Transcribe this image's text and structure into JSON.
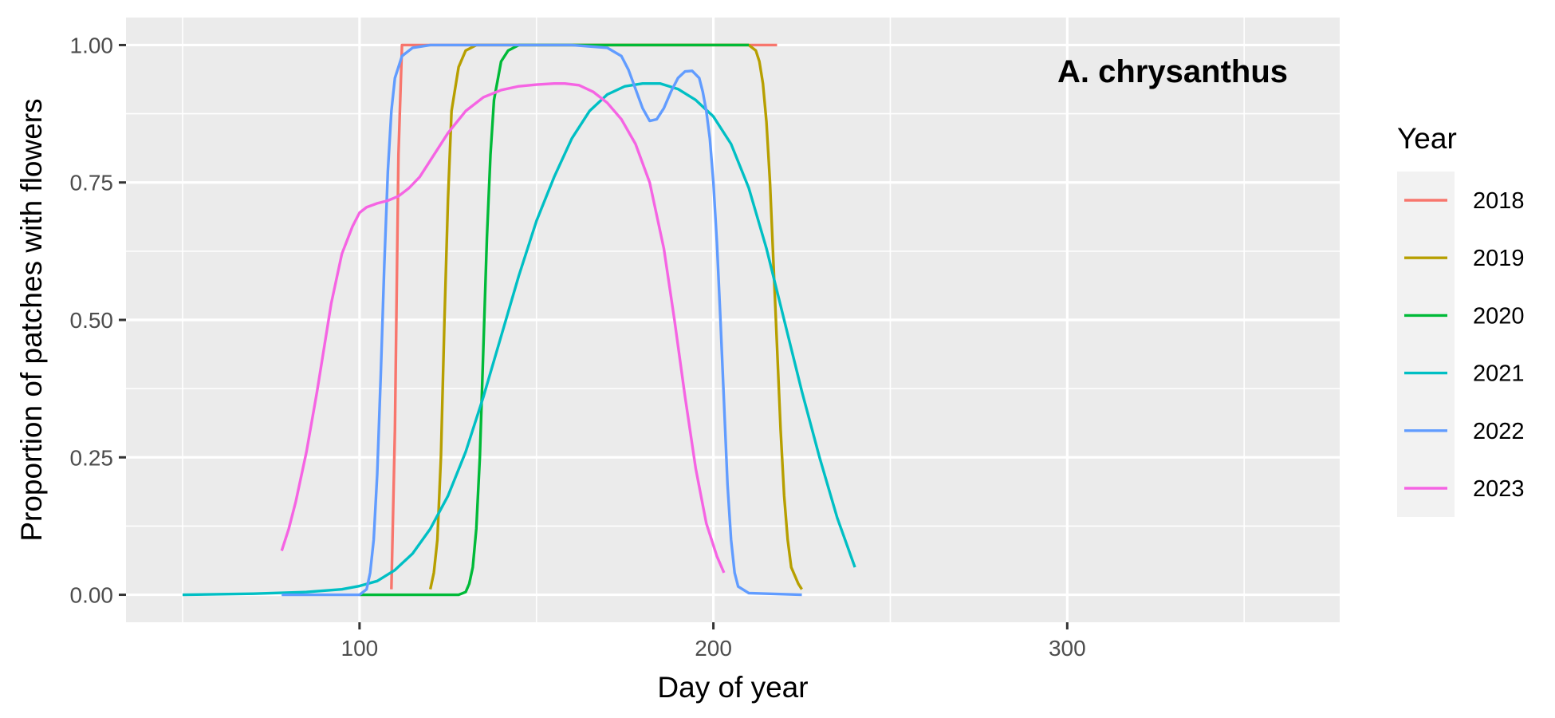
{
  "chart_data": {
    "type": "line",
    "title": "",
    "annotation": "A. chrysanthus",
    "xlabel": "Day of year",
    "ylabel": "Proportion of patches with flowers",
    "xlim": [
      34,
      377
    ],
    "ylim": [
      -0.05,
      1.05
    ],
    "x_ticks": [
      100,
      200,
      300
    ],
    "x_tick_labels": [
      "100",
      "200",
      "300"
    ],
    "y_ticks": [
      0,
      0.25,
      0.5,
      0.75,
      1.0
    ],
    "y_tick_labels": [
      "0.00",
      "0.25",
      "0.50",
      "0.75",
      "1.00"
    ],
    "legend_title": "Year",
    "legend_position": "right",
    "grid": true,
    "series": [
      {
        "name": "2018",
        "color": "#F8766D",
        "points": [
          [
            109,
            0.01
          ],
          [
            110,
            0.3
          ],
          [
            111,
            0.8
          ],
          [
            112,
            1.0
          ],
          [
            120,
            1.0
          ],
          [
            150,
            1.0
          ],
          [
            180,
            1.0
          ],
          [
            200,
            1.0
          ],
          [
            218,
            1.0
          ]
        ]
      },
      {
        "name": "2019",
        "color": "#B79F00",
        "points": [
          [
            120,
            0.01
          ],
          [
            121,
            0.04
          ],
          [
            122,
            0.1
          ],
          [
            123,
            0.25
          ],
          [
            124,
            0.5
          ],
          [
            125,
            0.72
          ],
          [
            126,
            0.88
          ],
          [
            128,
            0.96
          ],
          [
            130,
            0.99
          ],
          [
            133,
            1.0
          ],
          [
            150,
            1.0
          ],
          [
            180,
            1.0
          ],
          [
            200,
            1.0
          ],
          [
            210,
            1.0
          ],
          [
            212,
            0.99
          ],
          [
            213,
            0.97
          ],
          [
            214,
            0.93
          ],
          [
            215,
            0.86
          ],
          [
            216,
            0.75
          ],
          [
            217,
            0.6
          ],
          [
            218,
            0.45
          ],
          [
            219,
            0.3
          ],
          [
            220,
            0.18
          ],
          [
            221,
            0.1
          ],
          [
            222,
            0.05
          ],
          [
            224,
            0.02
          ],
          [
            225,
            0.01
          ]
        ]
      },
      {
        "name": "2020",
        "color": "#00BA38",
        "points": [
          [
            100,
            0.0
          ],
          [
            120,
            0.0
          ],
          [
            128,
            0.0
          ],
          [
            130,
            0.005
          ],
          [
            131,
            0.02
          ],
          [
            132,
            0.05
          ],
          [
            133,
            0.12
          ],
          [
            134,
            0.25
          ],
          [
            135,
            0.45
          ],
          [
            136,
            0.65
          ],
          [
            137,
            0.8
          ],
          [
            138,
            0.9
          ],
          [
            140,
            0.97
          ],
          [
            142,
            0.99
          ],
          [
            145,
            1.0
          ],
          [
            180,
            1.0
          ],
          [
            210,
            1.0
          ]
        ]
      },
      {
        "name": "2021",
        "color": "#00BFC4",
        "points": [
          [
            50,
            0.0
          ],
          [
            70,
            0.002
          ],
          [
            85,
            0.005
          ],
          [
            95,
            0.01
          ],
          [
            100,
            0.016
          ],
          [
            105,
            0.025
          ],
          [
            110,
            0.045
          ],
          [
            115,
            0.075
          ],
          [
            120,
            0.12
          ],
          [
            125,
            0.18
          ],
          [
            130,
            0.26
          ],
          [
            135,
            0.36
          ],
          [
            140,
            0.47
          ],
          [
            145,
            0.58
          ],
          [
            150,
            0.68
          ],
          [
            155,
            0.76
          ],
          [
            160,
            0.83
          ],
          [
            165,
            0.88
          ],
          [
            170,
            0.91
          ],
          [
            175,
            0.925
          ],
          [
            180,
            0.93
          ],
          [
            185,
            0.93
          ],
          [
            190,
            0.92
          ],
          [
            195,
            0.9
          ],
          [
            200,
            0.87
          ],
          [
            205,
            0.82
          ],
          [
            210,
            0.74
          ],
          [
            215,
            0.63
          ],
          [
            220,
            0.5
          ],
          [
            225,
            0.37
          ],
          [
            230,
            0.25
          ],
          [
            235,
            0.14
          ],
          [
            240,
            0.05
          ]
        ]
      },
      {
        "name": "2022",
        "color": "#619CFF",
        "points": [
          [
            78,
            0.0
          ],
          [
            90,
            0.0
          ],
          [
            100,
            0.0
          ],
          [
            102,
            0.01
          ],
          [
            103,
            0.04
          ],
          [
            104,
            0.1
          ],
          [
            105,
            0.22
          ],
          [
            106,
            0.4
          ],
          [
            107,
            0.6
          ],
          [
            108,
            0.77
          ],
          [
            109,
            0.88
          ],
          [
            110,
            0.94
          ],
          [
            112,
            0.98
          ],
          [
            115,
            0.995
          ],
          [
            120,
            1.0
          ],
          [
            140,
            1.0
          ],
          [
            160,
            1.0
          ],
          [
            170,
            0.995
          ],
          [
            174,
            0.98
          ],
          [
            176,
            0.955
          ],
          [
            178,
            0.92
          ],
          [
            180,
            0.885
          ],
          [
            182,
            0.862
          ],
          [
            184,
            0.865
          ],
          [
            186,
            0.885
          ],
          [
            188,
            0.915
          ],
          [
            190,
            0.94
          ],
          [
            192,
            0.952
          ],
          [
            194,
            0.953
          ],
          [
            196,
            0.94
          ],
          [
            197,
            0.915
          ],
          [
            198,
            0.88
          ],
          [
            199,
            0.83
          ],
          [
            200,
            0.75
          ],
          [
            201,
            0.64
          ],
          [
            202,
            0.5
          ],
          [
            203,
            0.35
          ],
          [
            204,
            0.2
          ],
          [
            205,
            0.1
          ],
          [
            206,
            0.04
          ],
          [
            207,
            0.015
          ],
          [
            210,
            0.003
          ],
          [
            225,
            0.0
          ]
        ]
      },
      {
        "name": "2023",
        "color": "#F564E3",
        "points": [
          [
            78,
            0.08
          ],
          [
            80,
            0.12
          ],
          [
            82,
            0.17
          ],
          [
            85,
            0.26
          ],
          [
            88,
            0.37
          ],
          [
            90,
            0.45
          ],
          [
            92,
            0.53
          ],
          [
            95,
            0.62
          ],
          [
            98,
            0.67
          ],
          [
            100,
            0.695
          ],
          [
            102,
            0.705
          ],
          [
            105,
            0.712
          ],
          [
            108,
            0.717
          ],
          [
            111,
            0.725
          ],
          [
            114,
            0.74
          ],
          [
            117,
            0.76
          ],
          [
            120,
            0.79
          ],
          [
            125,
            0.84
          ],
          [
            130,
            0.88
          ],
          [
            135,
            0.905
          ],
          [
            140,
            0.918
          ],
          [
            145,
            0.925
          ],
          [
            150,
            0.928
          ],
          [
            155,
            0.93
          ],
          [
            158,
            0.93
          ],
          [
            162,
            0.927
          ],
          [
            166,
            0.915
          ],
          [
            170,
            0.895
          ],
          [
            174,
            0.865
          ],
          [
            178,
            0.82
          ],
          [
            182,
            0.75
          ],
          [
            186,
            0.63
          ],
          [
            189,
            0.5
          ],
          [
            192,
            0.36
          ],
          [
            195,
            0.23
          ],
          [
            198,
            0.13
          ],
          [
            201,
            0.07
          ],
          [
            203,
            0.04
          ]
        ]
      }
    ]
  }
}
